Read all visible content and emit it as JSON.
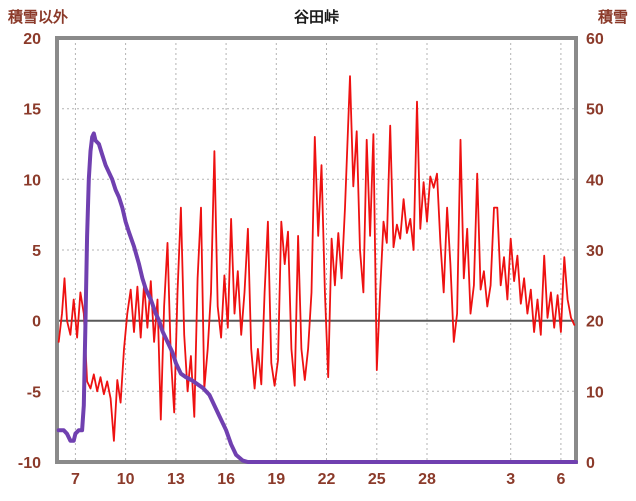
{
  "chart": {
    "title": "谷田峠",
    "left_axis_title": "積雪以外",
    "right_axis_title": "積雪"
  },
  "chart_data": {
    "type": "line",
    "title": "谷田峠",
    "grid": true,
    "legend": "none",
    "colors": {
      "temperature": "#ee1111",
      "snow": "#7040b0",
      "grid": "#b3b3b3",
      "zero_line": "#595959",
      "frame": "#8a8a8a",
      "axis_text": "#8b3a2a",
      "title_text": "#1a1a1a",
      "background": "#ffffff"
    },
    "left_axis": {
      "label": "積雪以外",
      "min": -10,
      "max": 20,
      "ticks": [
        20,
        15,
        10,
        5,
        0,
        -5,
        -10
      ]
    },
    "right_axis": {
      "label": "積雪",
      "min": 0,
      "max": 60,
      "ticks": [
        60,
        50,
        40,
        30,
        20,
        10,
        0
      ]
    },
    "x_axis": {
      "min": 5.9,
      "max": 36.9,
      "ticks": [
        {
          "pos": 7,
          "label": "7"
        },
        {
          "pos": 10,
          "label": "10"
        },
        {
          "pos": 13,
          "label": "13"
        },
        {
          "pos": 16,
          "label": "16"
        },
        {
          "pos": 19,
          "label": "19"
        },
        {
          "pos": 22,
          "label": "22"
        },
        {
          "pos": 25,
          "label": "25"
        },
        {
          "pos": 28,
          "label": "28"
        },
        {
          "pos": 33,
          "label": "3"
        },
        {
          "pos": 36,
          "label": "6"
        }
      ]
    },
    "series": [
      {
        "id": "temperature",
        "name": "積雪以外",
        "axis": "left",
        "color": "#ee1111",
        "width": 1.8,
        "points": [
          [
            6.0,
            -1.5
          ],
          [
            6.2,
            0.5
          ],
          [
            6.35,
            3.0
          ],
          [
            6.5,
            0.0
          ],
          [
            6.7,
            -1.0
          ],
          [
            6.9,
            1.5
          ],
          [
            7.1,
            -1.2
          ],
          [
            7.3,
            2.0
          ],
          [
            7.5,
            0.5
          ],
          [
            7.7,
            -4.3
          ],
          [
            7.9,
            -4.8
          ],
          [
            8.1,
            -3.8
          ],
          [
            8.3,
            -5.0
          ],
          [
            8.5,
            -4.0
          ],
          [
            8.7,
            -5.2
          ],
          [
            8.9,
            -4.3
          ],
          [
            9.1,
            -5.5
          ],
          [
            9.3,
            -8.5
          ],
          [
            9.5,
            -4.2
          ],
          [
            9.7,
            -5.8
          ],
          [
            9.9,
            -2.0
          ],
          [
            10.1,
            0.5
          ],
          [
            10.3,
            2.2
          ],
          [
            10.5,
            -0.8
          ],
          [
            10.7,
            2.4
          ],
          [
            10.9,
            -1.2
          ],
          [
            11.1,
            2.6
          ],
          [
            11.3,
            -0.5
          ],
          [
            11.5,
            2.8
          ],
          [
            11.7,
            -1.5
          ],
          [
            11.9,
            1.5
          ],
          [
            12.1,
            -7.0
          ],
          [
            12.3,
            1.0
          ],
          [
            12.5,
            5.5
          ],
          [
            12.7,
            -2.5
          ],
          [
            12.9,
            -6.5
          ],
          [
            13.1,
            2.0
          ],
          [
            13.3,
            8.0
          ],
          [
            13.5,
            -1.0
          ],
          [
            13.7,
            -5.0
          ],
          [
            13.9,
            -2.5
          ],
          [
            14.1,
            -6.8
          ],
          [
            14.3,
            3.0
          ],
          [
            14.5,
            8.0
          ],
          [
            14.7,
            -4.8
          ],
          [
            14.9,
            -2.0
          ],
          [
            15.1,
            2.0
          ],
          [
            15.3,
            12.0
          ],
          [
            15.5,
            1.0
          ],
          [
            15.7,
            -1.2
          ],
          [
            15.9,
            3.2
          ],
          [
            16.1,
            -0.5
          ],
          [
            16.3,
            7.2
          ],
          [
            16.5,
            0.5
          ],
          [
            16.7,
            3.5
          ],
          [
            16.9,
            -1.0
          ],
          [
            17.1,
            2.0
          ],
          [
            17.3,
            6.5
          ],
          [
            17.5,
            -2.0
          ],
          [
            17.7,
            -4.8
          ],
          [
            17.9,
            -2.0
          ],
          [
            18.1,
            -4.5
          ],
          [
            18.3,
            2.0
          ],
          [
            18.5,
            7.0
          ],
          [
            18.7,
            -3.0
          ],
          [
            18.9,
            -4.6
          ],
          [
            19.1,
            -2.8
          ],
          [
            19.3,
            7.0
          ],
          [
            19.5,
            4.0
          ],
          [
            19.7,
            6.3
          ],
          [
            19.9,
            -2.0
          ],
          [
            20.1,
            -4.6
          ],
          [
            20.3,
            6.0
          ],
          [
            20.5,
            -2.0
          ],
          [
            20.7,
            -4.2
          ],
          [
            20.9,
            -2.0
          ],
          [
            21.1,
            2.0
          ],
          [
            21.3,
            13.0
          ],
          [
            21.5,
            6.0
          ],
          [
            21.7,
            11.0
          ],
          [
            21.9,
            2.0
          ],
          [
            22.1,
            -4.0
          ],
          [
            22.3,
            5.8
          ],
          [
            22.5,
            2.5
          ],
          [
            22.7,
            6.2
          ],
          [
            22.9,
            3.0
          ],
          [
            23.1,
            8.0
          ],
          [
            23.4,
            17.3
          ],
          [
            23.6,
            9.5
          ],
          [
            23.8,
            13.4
          ],
          [
            24.0,
            5.0
          ],
          [
            24.2,
            2.0
          ],
          [
            24.4,
            12.8
          ],
          [
            24.6,
            6.0
          ],
          [
            24.8,
            13.2
          ],
          [
            25.0,
            -3.5
          ],
          [
            25.2,
            2.0
          ],
          [
            25.4,
            7.0
          ],
          [
            25.6,
            5.5
          ],
          [
            25.8,
            13.8
          ],
          [
            26.0,
            5.2
          ],
          [
            26.2,
            6.8
          ],
          [
            26.4,
            5.8
          ],
          [
            26.6,
            8.6
          ],
          [
            26.8,
            6.2
          ],
          [
            27.0,
            7.2
          ],
          [
            27.2,
            5.0
          ],
          [
            27.4,
            15.5
          ],
          [
            27.6,
            6.5
          ],
          [
            27.8,
            9.8
          ],
          [
            28.0,
            7.0
          ],
          [
            28.2,
            10.2
          ],
          [
            28.4,
            9.4
          ],
          [
            28.6,
            10.4
          ],
          [
            28.8,
            5.5
          ],
          [
            29.0,
            2.0
          ],
          [
            29.2,
            8.0
          ],
          [
            29.4,
            4.0
          ],
          [
            29.6,
            -1.5
          ],
          [
            29.8,
            0.5
          ],
          [
            30.0,
            12.8
          ],
          [
            30.2,
            3.0
          ],
          [
            30.4,
            6.5
          ],
          [
            30.6,
            0.5
          ],
          [
            30.8,
            2.5
          ],
          [
            31.0,
            10.4
          ],
          [
            31.2,
            2.2
          ],
          [
            31.4,
            3.5
          ],
          [
            31.6,
            1.0
          ],
          [
            31.8,
            2.5
          ],
          [
            32.0,
            8.0
          ],
          [
            32.2,
            8.0
          ],
          [
            32.4,
            2.5
          ],
          [
            32.6,
            4.5
          ],
          [
            32.8,
            1.5
          ],
          [
            33.0,
            5.8
          ],
          [
            33.2,
            2.8
          ],
          [
            33.4,
            4.6
          ],
          [
            33.6,
            1.2
          ],
          [
            33.8,
            3.0
          ],
          [
            34.0,
            0.5
          ],
          [
            34.2,
            2.2
          ],
          [
            34.4,
            -0.8
          ],
          [
            34.6,
            1.5
          ],
          [
            34.8,
            -1.0
          ],
          [
            35.0,
            4.6
          ],
          [
            35.2,
            0.2
          ],
          [
            35.4,
            2.0
          ],
          [
            35.6,
            -0.5
          ],
          [
            35.8,
            1.8
          ],
          [
            36.0,
            -0.8
          ],
          [
            36.2,
            4.5
          ],
          [
            36.4,
            1.5
          ],
          [
            36.6,
            0.2
          ],
          [
            36.8,
            -0.3
          ]
        ]
      },
      {
        "id": "snow-depth",
        "name": "積雪",
        "axis": "right",
        "color": "#7040b0",
        "width": 4,
        "points": [
          [
            6.0,
            4.5
          ],
          [
            6.3,
            4.5
          ],
          [
            6.5,
            4.0
          ],
          [
            6.7,
            3.0
          ],
          [
            6.9,
            3.0
          ],
          [
            7.0,
            4.0
          ],
          [
            7.2,
            4.5
          ],
          [
            7.4,
            4.5
          ],
          [
            7.5,
            8.0
          ],
          [
            7.6,
            20.0
          ],
          [
            7.7,
            32.0
          ],
          [
            7.8,
            40.0
          ],
          [
            7.9,
            44.0
          ],
          [
            8.0,
            46.0
          ],
          [
            8.1,
            46.5
          ],
          [
            8.2,
            45.5
          ],
          [
            8.4,
            45.0
          ],
          [
            8.6,
            43.5
          ],
          [
            8.8,
            42.0
          ],
          [
            9.0,
            41.0
          ],
          [
            9.2,
            40.0
          ],
          [
            9.4,
            38.5
          ],
          [
            9.6,
            37.5
          ],
          [
            9.8,
            36.0
          ],
          [
            10.0,
            34.0
          ],
          [
            10.2,
            32.5
          ],
          [
            10.5,
            30.5
          ],
          [
            10.8,
            28.0
          ],
          [
            11.0,
            26.0
          ],
          [
            11.2,
            24.5
          ],
          [
            11.5,
            23.0
          ],
          [
            11.8,
            21.0
          ],
          [
            12.0,
            20.0
          ],
          [
            12.2,
            18.5
          ],
          [
            12.5,
            17.0
          ],
          [
            12.8,
            15.5
          ],
          [
            13.0,
            14.0
          ],
          [
            13.3,
            12.5
          ],
          [
            13.6,
            12.0
          ],
          [
            14.0,
            11.5
          ],
          [
            14.3,
            11.0
          ],
          [
            14.6,
            10.5
          ],
          [
            15.0,
            9.5
          ],
          [
            15.3,
            8.0
          ],
          [
            15.6,
            6.5
          ],
          [
            16.0,
            4.5
          ],
          [
            16.3,
            2.5
          ],
          [
            16.6,
            1.0
          ],
          [
            17.0,
            0.2
          ],
          [
            17.3,
            0.0
          ],
          [
            36.9,
            0.0
          ]
        ]
      }
    ]
  }
}
